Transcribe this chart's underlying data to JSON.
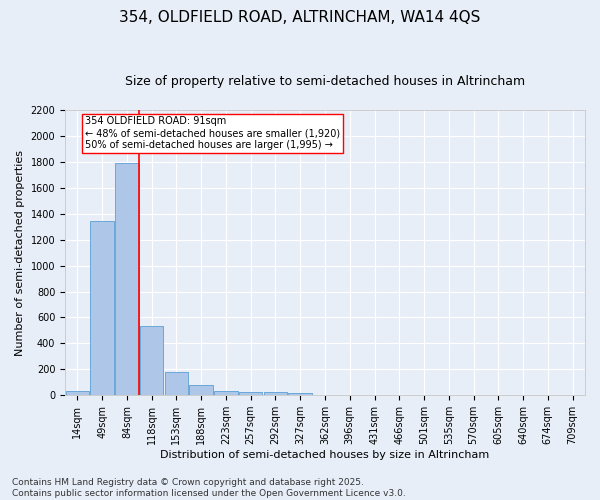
{
  "title_line1": "354, OLDFIELD ROAD, ALTRINCHAM, WA14 4QS",
  "title_line2": "Size of property relative to semi-detached houses in Altrincham",
  "xlabel": "Distribution of semi-detached houses by size in Altrincham",
  "ylabel": "Number of semi-detached properties",
  "footer_line1": "Contains HM Land Registry data © Crown copyright and database right 2025.",
  "footer_line2": "Contains public sector information licensed under the Open Government Licence v3.0.",
  "bins": [
    "14sqm",
    "49sqm",
    "84sqm",
    "118sqm",
    "153sqm",
    "188sqm",
    "223sqm",
    "257sqm",
    "292sqm",
    "327sqm",
    "362sqm",
    "396sqm",
    "431sqm",
    "466sqm",
    "501sqm",
    "535sqm",
    "570sqm",
    "605sqm",
    "640sqm",
    "674sqm",
    "709sqm"
  ],
  "values": [
    30,
    1340,
    1790,
    535,
    180,
    80,
    35,
    28,
    22,
    15,
    0,
    0,
    0,
    0,
    0,
    0,
    0,
    0,
    0,
    0,
    0
  ],
  "bar_color": "#aec6e8",
  "bar_edge_color": "#5a9fd4",
  "red_line_bin_index": 2,
  "annotation_text": "354 OLDFIELD ROAD: 91sqm\n← 48% of semi-detached houses are smaller (1,920)\n50% of semi-detached houses are larger (1,995) →",
  "ylim": [
    0,
    2200
  ],
  "yticks": [
    0,
    200,
    400,
    600,
    800,
    1000,
    1200,
    1400,
    1600,
    1800,
    2000,
    2200
  ],
  "background_color": "#e8eef8",
  "grid_color": "#ffffff",
  "title_fontsize": 11,
  "subtitle_fontsize": 9,
  "axis_label_fontsize": 8,
  "tick_fontsize": 7,
  "footer_fontsize": 6.5
}
